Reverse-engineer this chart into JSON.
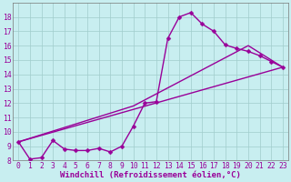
{
  "background_color": "#c8eef0",
  "grid_color": "#a0cccc",
  "line_color": "#990099",
  "marker": "D",
  "markersize": 2.5,
  "linewidth": 1.0,
  "xlabel": "Windchill (Refroidissement éolien,°C)",
  "xlabel_fontsize": 6.5,
  "tick_fontsize": 5.8,
  "xlim": [
    -0.5,
    23.5
  ],
  "ylim": [
    8,
    19
  ],
  "yticks": [
    8,
    9,
    10,
    11,
    12,
    13,
    14,
    15,
    16,
    17,
    18
  ],
  "xticks": [
    0,
    1,
    2,
    3,
    4,
    5,
    6,
    7,
    8,
    9,
    10,
    11,
    12,
    13,
    14,
    15,
    16,
    17,
    18,
    19,
    20,
    21,
    22,
    23
  ],
  "main_line": {
    "x": [
      0,
      1,
      2,
      3,
      4,
      5,
      6,
      7,
      8,
      9,
      10,
      11,
      12,
      13,
      14,
      15,
      16,
      17,
      18,
      19,
      20,
      21,
      22,
      23
    ],
    "y": [
      9.3,
      8.1,
      8.2,
      9.4,
      8.8,
      8.7,
      8.7,
      8.85,
      8.6,
      9.0,
      10.4,
      12.0,
      12.1,
      16.5,
      18.0,
      18.3,
      17.5,
      17.0,
      16.05,
      15.8,
      15.6,
      15.3,
      14.9,
      14.5
    ]
  },
  "lower_line": {
    "x": [
      0,
      23
    ],
    "y": [
      9.3,
      14.5
    ]
  },
  "upper_line": {
    "x": [
      0,
      10,
      20,
      23
    ],
    "y": [
      9.3,
      11.8,
      16.0,
      14.5
    ]
  }
}
